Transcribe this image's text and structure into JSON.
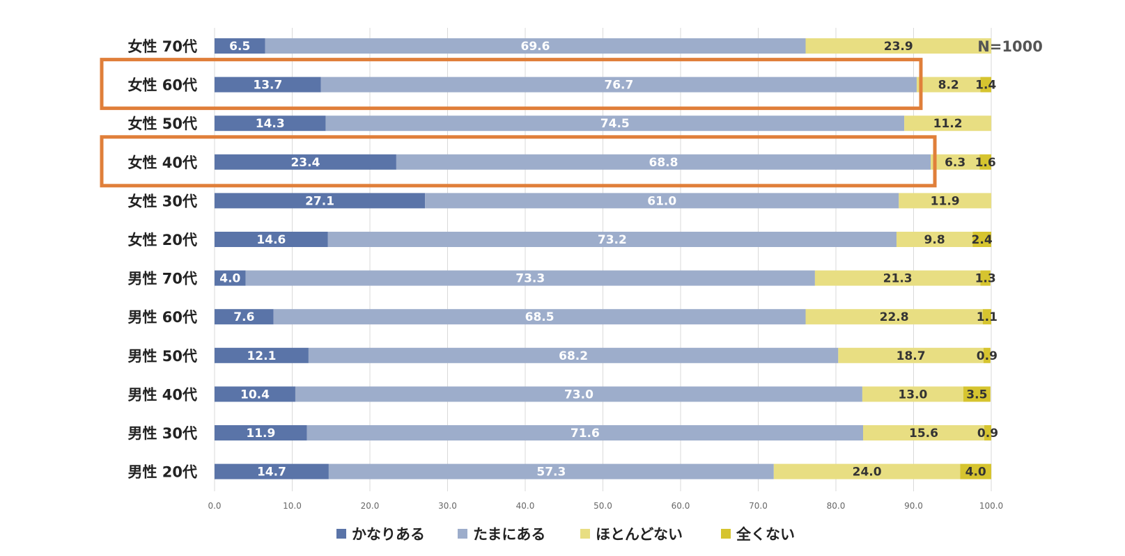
{
  "chart_data": {
    "type": "bar",
    "orientation": "horizontal",
    "stacked": true,
    "categories": [
      "女性 70代",
      "女性 60代",
      "女性 50代",
      "女性 40代",
      "女性 30代",
      "女性 20代",
      "男性 70代",
      "男性 60代",
      "男性 50代",
      "男性 40代",
      "男性 30代",
      "男性 20代"
    ],
    "series": [
      {
        "name": "かなりある",
        "color": "#5a74a8",
        "label_color": "#ffffff",
        "values": [
          6.5,
          13.7,
          14.3,
          23.4,
          27.1,
          14.6,
          4.0,
          7.6,
          12.1,
          10.4,
          11.9,
          14.7
        ]
      },
      {
        "name": "たまにある",
        "color": "#9dadcb",
        "label_color": "#ffffff",
        "values": [
          69.6,
          76.7,
          74.5,
          68.8,
          61.0,
          73.2,
          73.3,
          68.5,
          68.2,
          73.0,
          71.6,
          57.3
        ]
      },
      {
        "name": "ほとんどない",
        "color": "#e8de82",
        "label_color": "#333333",
        "values": [
          23.9,
          8.2,
          11.2,
          6.3,
          11.9,
          9.8,
          21.3,
          22.8,
          18.7,
          13.0,
          15.6,
          24.0
        ]
      },
      {
        "name": "全くない",
        "color": "#d6c42f",
        "label_color": "#333333",
        "values": [
          null,
          1.4,
          null,
          1.6,
          null,
          2.4,
          1.3,
          1.1,
          0.9,
          3.5,
          0.9,
          4.0
        ]
      }
    ],
    "xlim": [
      0,
      100
    ],
    "xticks": [
      "0.0",
      "10.0",
      "20.0",
      "30.0",
      "40.0",
      "50.0",
      "60.0",
      "70.0",
      "80.0",
      "90.0",
      "100.0"
    ],
    "grid": true,
    "legend_position": "bottom",
    "annotation": "N=1000",
    "highlighted_categories": [
      "女性 60代",
      "女性 40代"
    ],
    "highlight_color": "#e07f3a"
  }
}
